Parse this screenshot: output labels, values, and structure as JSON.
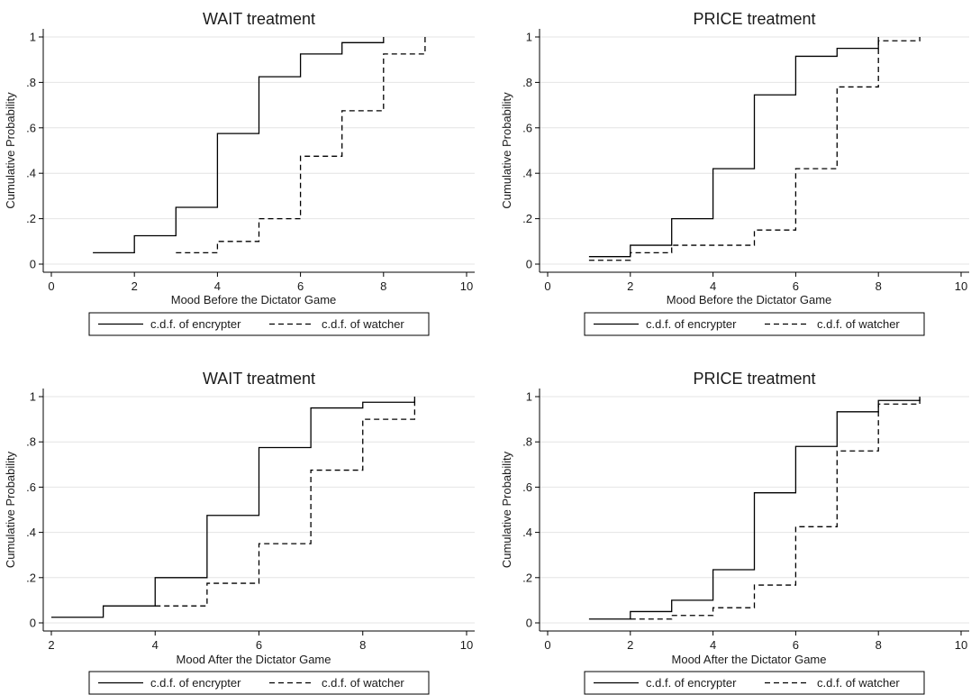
{
  "chart_data": [
    {
      "type": "line",
      "title": "WAIT treatment",
      "xlabel": "Mood Before the Dictator Game",
      "ylabel": "Cumulative Probability",
      "xlim": [
        0,
        10
      ],
      "ylim": [
        0,
        1
      ],
      "xticks": [
        0,
        2,
        4,
        6,
        8,
        10
      ],
      "xtick_labels": [
        "0",
        "2",
        "4",
        "6",
        "8",
        "10"
      ],
      "yticks": [
        0,
        0.2,
        0.4,
        0.6,
        0.8,
        1
      ],
      "ytick_labels": [
        "0",
        ".2",
        ".4",
        ".6",
        ".8",
        "1"
      ],
      "grid": true,
      "legend_position": "bottom",
      "series": [
        {
          "name": "c.d.f. of  encrypter",
          "style": "solid",
          "x": [
            1,
            2,
            3,
            4,
            5,
            6,
            7,
            8
          ],
          "y": [
            0.05,
            0.125,
            0.25,
            0.575,
            0.825,
            0.925,
            0.975,
            1.0
          ]
        },
        {
          "name": "c.d.f. of  watcher",
          "style": "dashed",
          "x": [
            3,
            4,
            5,
            6,
            7,
            8,
            9
          ],
          "y": [
            0.05,
            0.1,
            0.2,
            0.475,
            0.675,
            0.925,
            1.0
          ]
        }
      ]
    },
    {
      "type": "line",
      "title": "PRICE treatment",
      "xlabel": "Mood Before the Dictator Game",
      "ylabel": "Cumulative Probability",
      "xlim": [
        0,
        10
      ],
      "ylim": [
        0,
        1
      ],
      "xticks": [
        0,
        2,
        4,
        6,
        8,
        10
      ],
      "xtick_labels": [
        "0",
        "2",
        "4",
        "6",
        "8",
        "10"
      ],
      "yticks": [
        0,
        0.2,
        0.4,
        0.6,
        0.8,
        1
      ],
      "ytick_labels": [
        "0",
        ".2",
        ".4",
        ".6",
        ".8",
        "1"
      ],
      "grid": true,
      "legend_position": "bottom",
      "series": [
        {
          "name": "c.d.f. of  encrypter",
          "style": "solid",
          "x": [
            1,
            2,
            3,
            4,
            5,
            6,
            7,
            8
          ],
          "y": [
            0.033,
            0.083,
            0.2,
            0.42,
            0.745,
            0.915,
            0.95,
            1.0
          ]
        },
        {
          "name": "c.d.f. of  watcher",
          "style": "dashed",
          "x": [
            1,
            2,
            3,
            4,
            5,
            6,
            7,
            8,
            9
          ],
          "y": [
            0.017,
            0.05,
            0.083,
            0.083,
            0.15,
            0.42,
            0.78,
            0.983,
            1.0
          ]
        }
      ]
    },
    {
      "type": "line",
      "title": "WAIT treatment",
      "xlabel": "Mood After the Dictator Game",
      "ylabel": "Cumulative Probability",
      "xlim": [
        2,
        10
      ],
      "ylim": [
        0,
        1
      ],
      "xticks": [
        2,
        4,
        6,
        8,
        10
      ],
      "xtick_labels": [
        "2",
        "4",
        "6",
        "8",
        "10"
      ],
      "yticks": [
        0,
        0.2,
        0.4,
        0.6,
        0.8,
        1
      ],
      "ytick_labels": [
        "0",
        ".2",
        ".4",
        ".6",
        ".8",
        "1"
      ],
      "grid": true,
      "legend_position": "bottom",
      "series": [
        {
          "name": "c.d.f. of  encrypter",
          "style": "solid",
          "x": [
            2,
            3,
            4,
            5,
            6,
            7,
            8,
            9
          ],
          "y": [
            0.025,
            0.075,
            0.2,
            0.475,
            0.775,
            0.95,
            0.975,
            1.0
          ]
        },
        {
          "name": "c.d.f. of  watcher",
          "style": "dashed",
          "x": [
            4,
            5,
            6,
            7,
            8,
            9
          ],
          "y": [
            0.075,
            0.175,
            0.35,
            0.675,
            0.9,
            1.0
          ]
        }
      ]
    },
    {
      "type": "line",
      "title": "PRICE treatment",
      "xlabel": "Mood After the Dictator Game",
      "ylabel": "Cumulative Probability",
      "xlim": [
        0,
        10
      ],
      "ylim": [
        0,
        1
      ],
      "xticks": [
        0,
        2,
        4,
        6,
        8,
        10
      ],
      "xtick_labels": [
        "0",
        "2",
        "4",
        "6",
        "8",
        "10"
      ],
      "yticks": [
        0,
        0.2,
        0.4,
        0.6,
        0.8,
        1
      ],
      "ytick_labels": [
        "0",
        ".2",
        ".4",
        ".6",
        ".8",
        "1"
      ],
      "grid": true,
      "legend_position": "bottom",
      "series": [
        {
          "name": "c.d.f. of  encrypter",
          "style": "solid",
          "x": [
            1,
            2,
            3,
            4,
            5,
            6,
            7,
            8,
            9
          ],
          "y": [
            0.017,
            0.05,
            0.1,
            0.235,
            0.575,
            0.78,
            0.933,
            0.983,
            1.0
          ]
        },
        {
          "name": "c.d.f. of  watcher",
          "style": "dashed",
          "x": [
            2,
            3,
            4,
            5,
            6,
            7,
            8,
            9
          ],
          "y": [
            0.017,
            0.033,
            0.067,
            0.167,
            0.425,
            0.76,
            0.967,
            1.0
          ]
        }
      ]
    }
  ]
}
